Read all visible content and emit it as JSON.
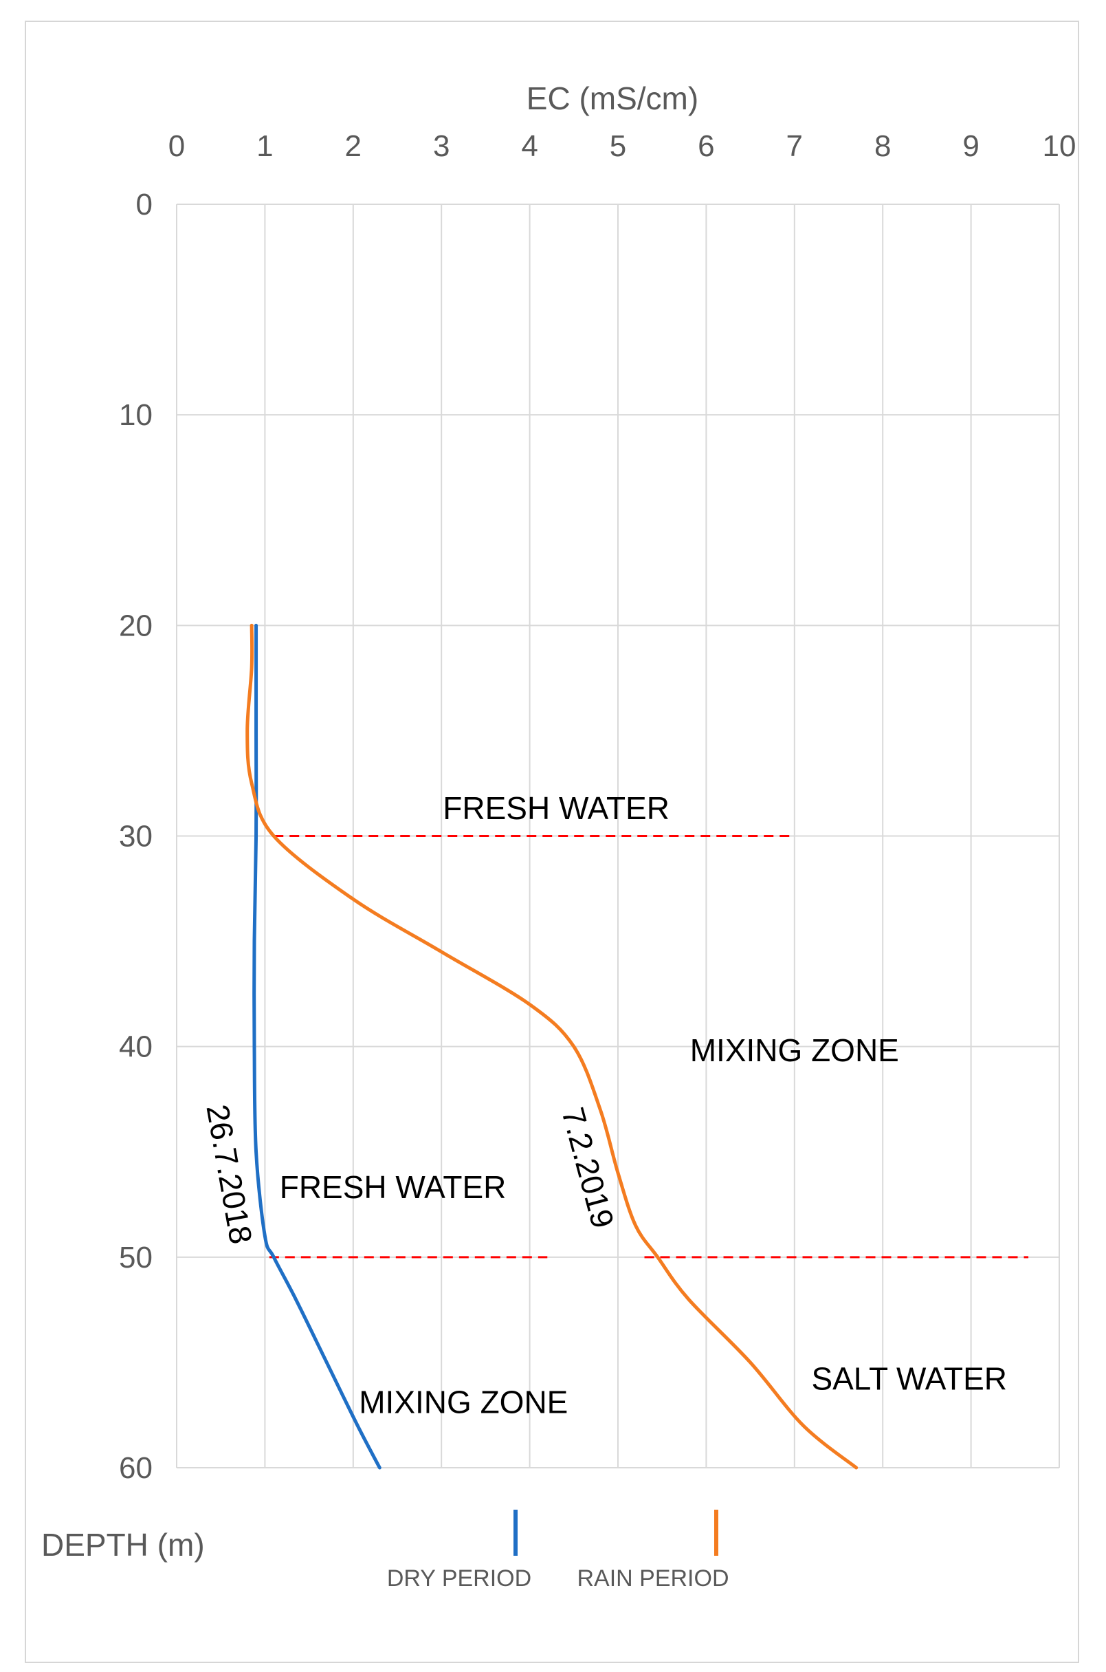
{
  "chart_data": {
    "type": "line",
    "title": "",
    "xlabel": "EC (mS/cm)",
    "ylabel": "DEPTH (m)",
    "xlim": [
      0,
      10
    ],
    "ylim": [
      0,
      60
    ],
    "y_inverted": true,
    "x_ticks": [
      0,
      1,
      2,
      3,
      4,
      5,
      6,
      7,
      8,
      9,
      10
    ],
    "y_ticks": [
      0,
      10,
      20,
      30,
      40,
      50,
      60
    ],
    "grid": true,
    "colors": {
      "dry": "#1f6fc5",
      "rain": "#f47c20",
      "boundary": "#ff0000",
      "grid": "#d9d9d9"
    },
    "series": [
      {
        "name": "DRY PERIOD",
        "date_label": "26.7.2018",
        "points": [
          [
            0.9,
            20
          ],
          [
            0.9,
            25
          ],
          [
            0.9,
            30
          ],
          [
            0.88,
            35
          ],
          [
            0.88,
            40
          ],
          [
            0.9,
            45
          ],
          [
            1.0,
            49
          ],
          [
            1.1,
            50
          ],
          [
            1.35,
            52
          ],
          [
            1.7,
            55
          ],
          [
            2.05,
            58
          ],
          [
            2.3,
            60
          ]
        ]
      },
      {
        "name": "RAIN PERIOD",
        "date_label": "7.2.2019",
        "points": [
          [
            0.85,
            20
          ],
          [
            0.85,
            22
          ],
          [
            0.8,
            25
          ],
          [
            0.85,
            27.5
          ],
          [
            1.1,
            30
          ],
          [
            2.0,
            33
          ],
          [
            3.0,
            35.5
          ],
          [
            4.0,
            38
          ],
          [
            4.5,
            40
          ],
          [
            4.8,
            43
          ],
          [
            5.0,
            46
          ],
          [
            5.2,
            48.5
          ],
          [
            5.45,
            50
          ],
          [
            5.8,
            52
          ],
          [
            6.5,
            55
          ],
          [
            7.1,
            58
          ],
          [
            7.7,
            60
          ]
        ]
      }
    ],
    "boundaries": [
      {
        "depth": 30,
        "segments": [
          [
            1.1,
            7.0
          ]
        ]
      },
      {
        "depth": 50,
        "segments": [
          [
            1.05,
            4.2
          ],
          [
            5.3,
            9.65
          ]
        ]
      }
    ],
    "annotations": [
      {
        "id": "fresh_top",
        "text": "FRESH WATER",
        "x": 4.3,
        "y": 29.2
      },
      {
        "id": "mix_right",
        "text": "MIXING ZONE",
        "x": 7.0,
        "y": 40.7
      },
      {
        "id": "fresh_left",
        "text": "FRESH WATER",
        "x": 2.45,
        "y": 47.2
      },
      {
        "id": "mix_left",
        "text": "MIXING ZONE",
        "x": 3.25,
        "y": 57.4
      },
      {
        "id": "salt",
        "text": "SALT WATER",
        "x": 8.3,
        "y": 56.3
      }
    ],
    "legend_position": "bottom"
  }
}
